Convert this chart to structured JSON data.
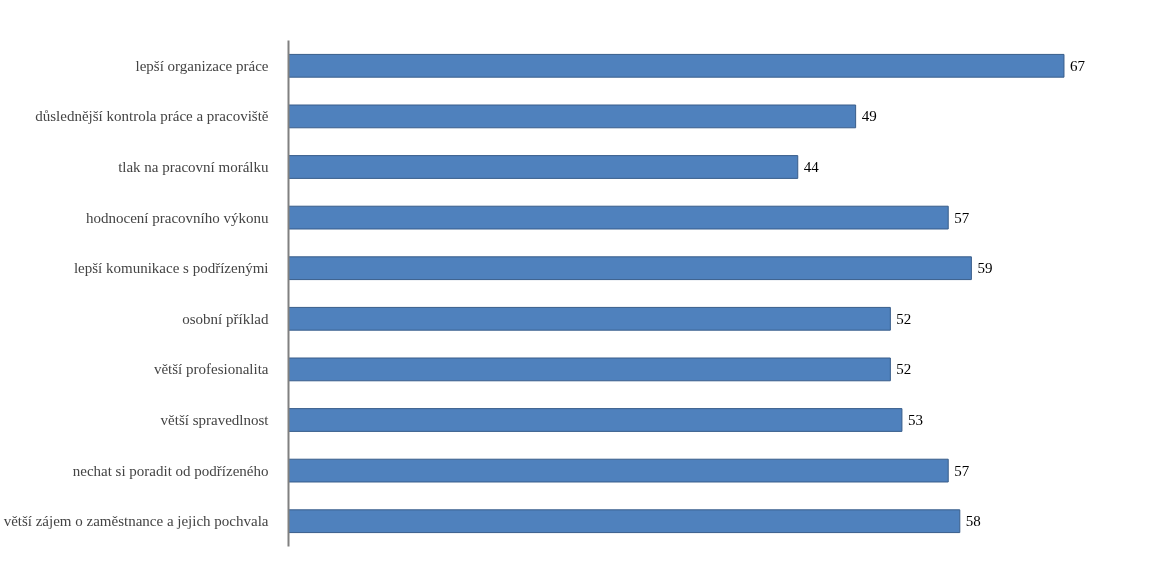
{
  "chart_data": {
    "type": "bar",
    "orientation": "horizontal",
    "categories": [
      "lepší organizace práce",
      "důslednější kontrola práce a pracoviště",
      "tlak na pracovní morálku",
      "hodnocení pracovního výkonu",
      "lepší komunikace s podřízenými",
      "osobní příklad",
      "větší profesionalita",
      "větší spravedlnost",
      "nechat si poradit od podřízeného",
      "větší zájem o zaměstnance a jejich pochvala"
    ],
    "values": [
      67,
      49,
      44,
      57,
      59,
      52,
      52,
      53,
      57,
      58
    ],
    "color": "#4f81bd",
    "data_labels": true,
    "grid": false
  }
}
